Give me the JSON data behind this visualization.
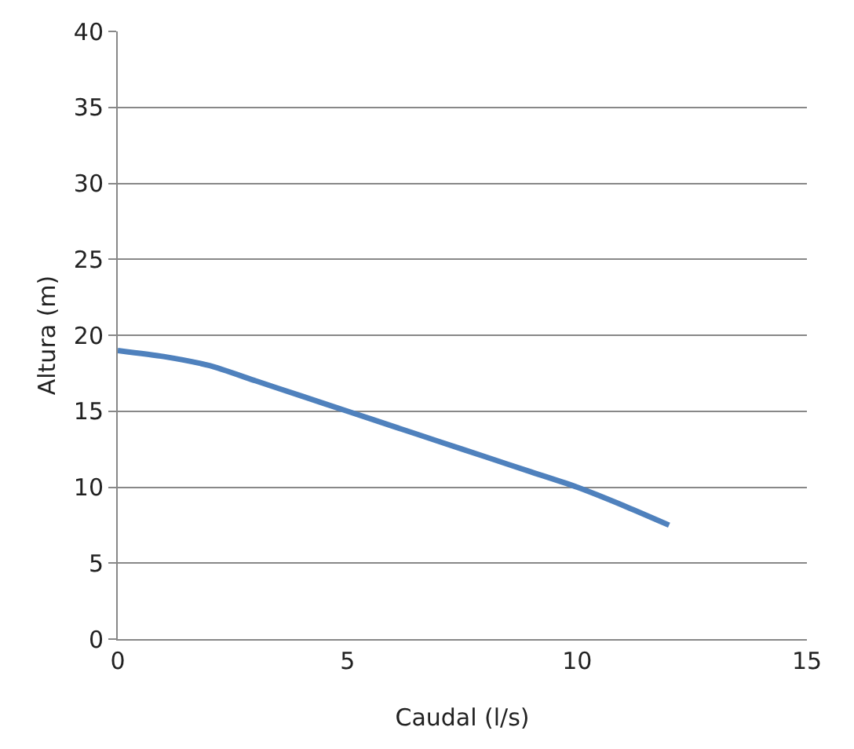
{
  "chart_data": {
    "type": "line",
    "xlabel": "Caudal (l/s)",
    "ylabel": "Altura (m)",
    "series": [
      {
        "color": "#4f81bd",
        "x": [
          0,
          1,
          2,
          3,
          4,
          5,
          6,
          7,
          8,
          9,
          10,
          11,
          12
        ],
        "values": [
          19,
          18.6,
          18,
          17,
          16,
          15,
          14,
          13,
          12,
          11,
          10,
          8.8,
          7.5
        ]
      }
    ],
    "xlim": [
      0,
      15
    ],
    "xticks": [
      0,
      5,
      10,
      15
    ],
    "ylim": [
      0,
      40
    ],
    "yticks": [
      0,
      5,
      10,
      15,
      20,
      25,
      30,
      35,
      40
    ],
    "grid": "y",
    "marker": "none",
    "line_style": "solid"
  }
}
